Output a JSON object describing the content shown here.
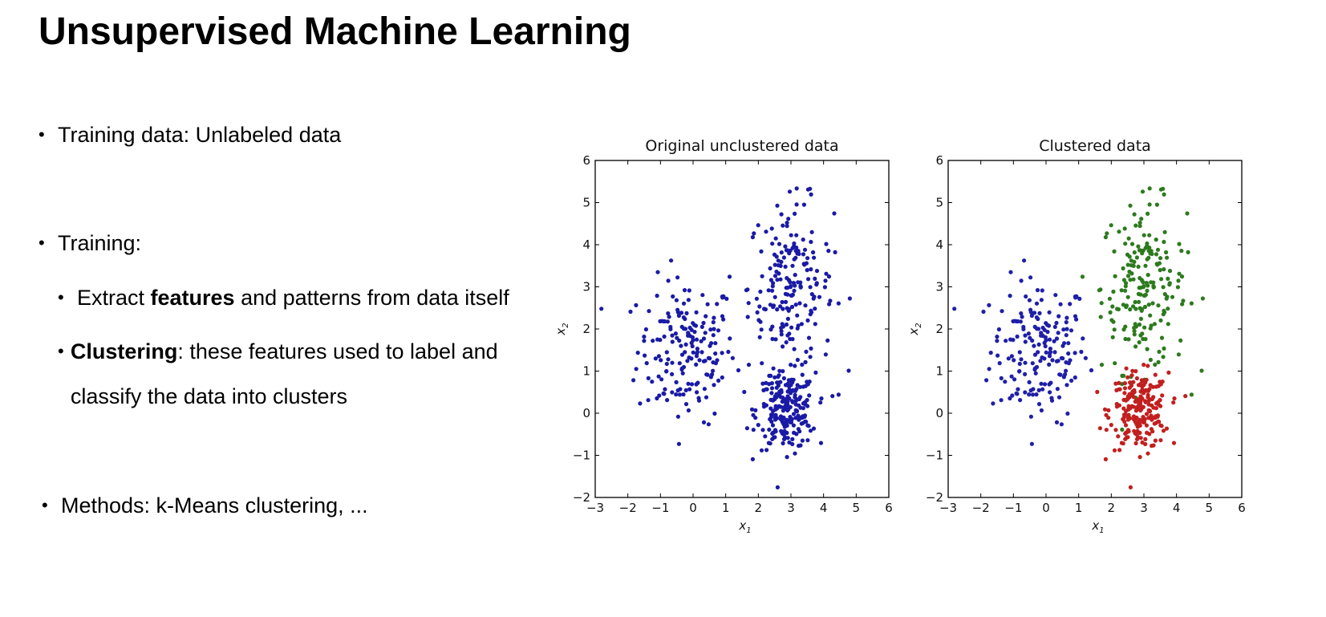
{
  "title": "Unsupervised Machine Learning",
  "bullets": {
    "training_data": "Training data: Unlabeled data",
    "training": "Training:",
    "extract_pre": "Extract ",
    "extract_bold": "features",
    "extract_post": " and patterns from data itself",
    "clustering_bold": "Clustering",
    "clustering_post": ": these features used to label and classify the data into clusters",
    "methods": "Methods: k-Means clustering, ..."
  },
  "colors": {
    "unclustered": "#1a1aa6",
    "cluster_blue": "#1f1fa8",
    "cluster_green": "#2d7a1e",
    "cluster_red": "#c21f1f"
  },
  "chart_data": [
    {
      "type": "scatter",
      "title": "Original unclustered data",
      "xlabel": "x1",
      "ylabel": "x2",
      "xlim": [
        -3,
        6
      ],
      "ylim": [
        -2,
        6
      ],
      "xticks": [
        "−3",
        "−2",
        "−1",
        "0",
        "1",
        "2",
        "3",
        "4",
        "5",
        "6"
      ],
      "yticks": [
        "−2",
        "−1",
        "0",
        "1",
        "2",
        "3",
        "4",
        "5",
        "6"
      ],
      "series": [
        {
          "color": "unclustered",
          "clusters": [
            {
              "mean": [
                -0.2,
                1.5
              ],
              "std": [
                0.75,
                0.85
              ],
              "n": 180
            },
            {
              "mean": [
                3.0,
                3.0
              ],
              "std": [
                0.65,
                1.0
              ],
              "n": 200
            },
            {
              "mean": [
                2.85,
                0.05
              ],
              "std": [
                0.45,
                0.45
              ],
              "n": 220
            }
          ]
        }
      ]
    },
    {
      "type": "scatter",
      "title": "Clustered data",
      "xlabel": "x1",
      "ylabel": "x2",
      "xlim": [
        -3,
        6
      ],
      "ylim": [
        -2,
        6
      ],
      "xticks": [
        "−3",
        "−2",
        "−1",
        "0",
        "1",
        "2",
        "3",
        "4",
        "5",
        "6"
      ],
      "yticks": [
        "−2",
        "−1",
        "0",
        "1",
        "2",
        "3",
        "4",
        "5",
        "6"
      ],
      "series": [
        {
          "color": "cluster_blue",
          "clusters": [
            {
              "mean": [
                -0.2,
                1.5
              ],
              "std": [
                0.75,
                0.85
              ],
              "n": 180
            }
          ]
        },
        {
          "color": "cluster_green",
          "clusters": [
            {
              "mean": [
                3.0,
                3.0
              ],
              "std": [
                0.65,
                1.0
              ],
              "n": 200
            }
          ]
        },
        {
          "color": "cluster_red",
          "clusters": [
            {
              "mean": [
                2.85,
                0.05
              ],
              "std": [
                0.45,
                0.45
              ],
              "n": 220
            }
          ]
        }
      ]
    }
  ]
}
